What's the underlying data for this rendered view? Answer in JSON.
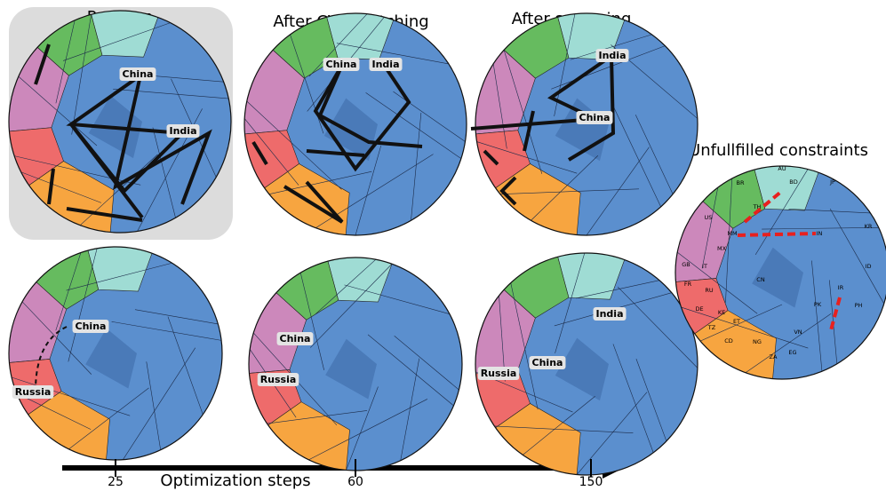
{
  "column_titles": [
    "Random",
    "After CVT matching",
    "After swapping"
  ],
  "top_row": [
    {
      "labels": [
        "China",
        "India"
      ]
    },
    {
      "labels": [
        "China",
        "India"
      ]
    },
    {
      "labels": [
        "India",
        "China"
      ]
    }
  ],
  "bottom_row": [
    {
      "labels": [
        "China",
        "Russia"
      ]
    },
    {
      "labels": [
        "China",
        "Russia"
      ]
    },
    {
      "labels": [
        "India",
        "China",
        "Russia"
      ]
    }
  ],
  "constraints_panel": {
    "title": "Unfullfilled constraints",
    "codes": [
      "AU",
      "BR",
      "BD",
      "JP",
      "US",
      "TH",
      "MM",
      "IN",
      "KR",
      "MX",
      "GB",
      "IT",
      "CN",
      "ID",
      "FR",
      "RU",
      "IR",
      "PK",
      "PH",
      "DE",
      "KE",
      "ET",
      "TZ",
      "CD",
      "NG",
      "VN",
      "ZA",
      "EG"
    ]
  },
  "axis": {
    "label": "Optimization steps",
    "ticks": [
      25,
      60,
      150
    ]
  }
}
